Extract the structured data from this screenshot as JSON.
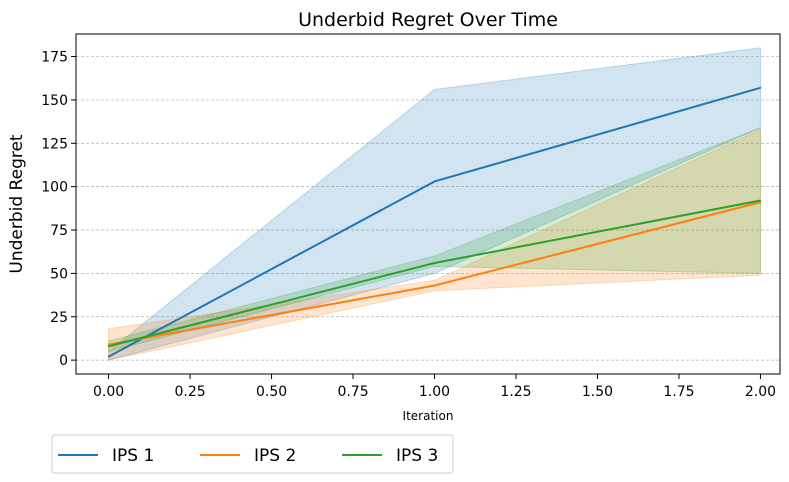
{
  "chart_data": {
    "type": "line",
    "title": "Underbid Regret Over Time",
    "xlabel": "Iteration",
    "ylabel": "Underbid Regret",
    "xlim": [
      -0.1,
      2.06
    ],
    "ylim": [
      -8,
      188
    ],
    "xticks": [
      "0.00",
      "0.25",
      "0.50",
      "0.75",
      "1.00",
      "1.25",
      "1.50",
      "1.75",
      "2.00"
    ],
    "yticks": [
      "0",
      "25",
      "50",
      "75",
      "100",
      "125",
      "150",
      "175"
    ],
    "grid": "horizontal, dashed",
    "legend_position": "below-left",
    "series": [
      {
        "name": "IPS 1",
        "color": "#1f77b4",
        "x": [
          0,
          1,
          2
        ],
        "values": [
          2,
          103,
          157
        ],
        "band_lower": [
          0,
          50,
          134
        ],
        "band_upper": [
          5,
          156,
          180
        ]
      },
      {
        "name": "IPS 2",
        "color": "#ff7f0e",
        "x": [
          0,
          1,
          2
        ],
        "values": [
          9,
          43,
          91
        ],
        "band_lower": [
          0,
          40,
          49
        ],
        "band_upper": [
          18,
          46,
          133
        ]
      },
      {
        "name": "IPS 3",
        "color": "#2ca02c",
        "x": [
          0,
          1,
          2
        ],
        "values": [
          8,
          56,
          92
        ],
        "band_lower": [
          5,
          54,
          50
        ],
        "band_upper": [
          11,
          60,
          134
        ]
      }
    ]
  }
}
